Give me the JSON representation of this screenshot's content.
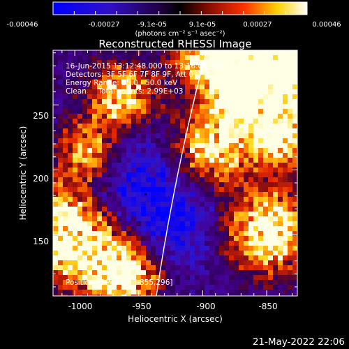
{
  "colorbar": {
    "tick_labels": [
      "-0.00046",
      "-0.00027",
      "-9.1e-05",
      "9.1e-05",
      "0.00027",
      "0.00046"
    ],
    "units_label": "(photons cm⁻² s⁻¹ asec⁻²)"
  },
  "plot": {
    "title": "Reconstructed RHESSI Image",
    "info_lines": [
      "16-Jun-2015 13:12:48.000 to 13:16:08.000",
      "Detectors: 3F 5F 6F 7F 8F 9F, Att 0",
      "Energy Range: 25.0 - 50.0 keV",
      "Clean     Total counts: 2.99E+03"
    ],
    "peak_label": "Position of Peak = [-855,296]",
    "xlabel": "Heliocentric X (arcsec)",
    "ylabel": "Heliocentric Y (arcsec)",
    "x_ticks": [
      "-1000",
      "-950",
      "-900",
      "-850"
    ],
    "y_ticks": [
      "250",
      "200",
      "150"
    ],
    "xlim": [
      -1017,
      -826
    ],
    "ylim": [
      103,
      292
    ]
  },
  "footer": {
    "date": "21-May-2022 22:06"
  },
  "colors": {
    "background": "#000000",
    "limb": "#ffffff",
    "colormap_low": "#0000ff",
    "colormap_mid": "#1a0030",
    "colormap_high": "#ffffff"
  }
}
